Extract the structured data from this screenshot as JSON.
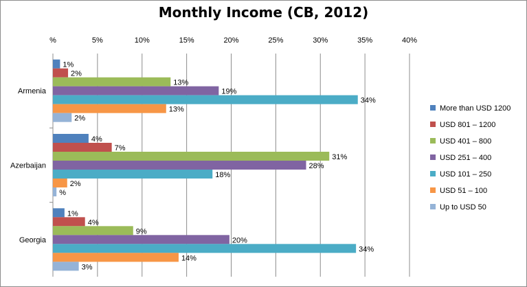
{
  "chart_data": {
    "type": "bar",
    "orientation": "horizontal",
    "title": "Monthly Income (CB, 2012)",
    "xlabel": "",
    "ylabel": "",
    "xlim": [
      0,
      40
    ],
    "x_ticks": [
      "%",
      "5%",
      "10%",
      "15%",
      "20%",
      "25%",
      "30%",
      "35%",
      "40%"
    ],
    "x_tick_position": "top",
    "grid": true,
    "legend_position": "right",
    "categories": [
      "Armenia",
      "Azerbaijan",
      "Georgia"
    ],
    "series": [
      {
        "name": "More than USD 1200",
        "color": "#4f81bd",
        "values": [
          0.8,
          4.0,
          1.3
        ],
        "labels": [
          "1%",
          "4%",
          "1%"
        ]
      },
      {
        "name": "USD 801 – 1200",
        "color": "#c0504d",
        "values": [
          1.7,
          6.6,
          3.6
        ],
        "labels": [
          "2%",
          "7%",
          "4%"
        ]
      },
      {
        "name": "USD 401 – 800",
        "color": "#9bbb59",
        "values": [
          13.2,
          31.0,
          9.0
        ],
        "labels": [
          "13%",
          "31%",
          "9%"
        ]
      },
      {
        "name": "USD 251 – 400",
        "color": "#8064a2",
        "values": [
          18.6,
          28.4,
          19.8
        ],
        "labels": [
          "19%",
          "28%",
          "20%"
        ]
      },
      {
        "name": "USD 101 – 250",
        "color": "#4bacc6",
        "values": [
          34.2,
          17.9,
          34.0
        ],
        "labels": [
          "34%",
          "18%",
          "34%"
        ]
      },
      {
        "name": "USD 51 – 100",
        "color": "#f79646",
        "values": [
          12.7,
          1.6,
          14.1
        ],
        "labels": [
          "13%",
          "2%",
          "14%"
        ]
      },
      {
        "name": "Up to USD 50",
        "color": "#95b3d7",
        "values": [
          2.1,
          0.4,
          2.9
        ],
        "labels": [
          "2%",
          "%",
          "3%"
        ]
      }
    ]
  }
}
